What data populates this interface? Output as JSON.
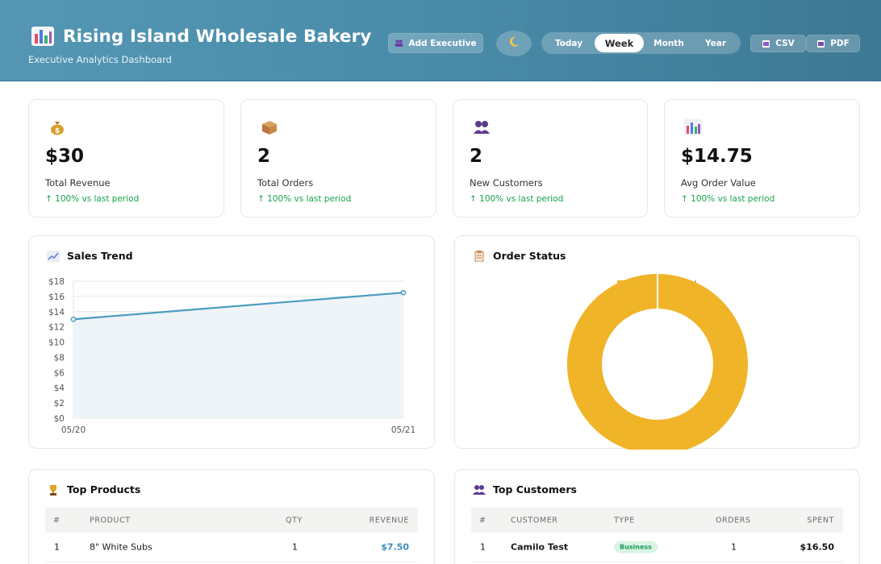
{
  "header": {
    "title": "Rising Island Wholesale Bakery",
    "subtitle": "Executive Analytics Dashboard",
    "add_executive_label": "Add Executive",
    "periods": [
      "Today",
      "Week",
      "Month",
      "Year"
    ],
    "active_period": "Week",
    "csv_label": "CSV",
    "pdf_label": "PDF",
    "theme_icon": "moon-icon",
    "accent": "#4a8dab"
  },
  "stats": [
    {
      "icon": "money-bag-icon",
      "value": "$30",
      "label": "Total Revenue",
      "change": "↑ 100% vs last period"
    },
    {
      "icon": "package-icon",
      "value": "2",
      "label": "Total Orders",
      "change": "↑ 100% vs last period"
    },
    {
      "icon": "users-icon",
      "value": "2",
      "label": "New Customers",
      "change": "↑ 100% vs last period"
    },
    {
      "icon": "bar-chart-icon",
      "value": "$14.75",
      "label": "Avg Order Value",
      "change": "↑ 100% vs last period"
    }
  ],
  "sales_trend": {
    "title": "Sales Trend",
    "chart_data": {
      "type": "area",
      "x": [
        "05/20",
        "05/21"
      ],
      "values": [
        13,
        16.5
      ],
      "y_ticks": [
        "$0",
        "$2",
        "$4",
        "$6",
        "$8",
        "$10",
        "$12",
        "$14",
        "$16",
        "$18"
      ],
      "ylim": [
        0,
        18
      ],
      "line_color": "#4a9bc0",
      "fill_color": "#eef4f8",
      "grid": true
    }
  },
  "order_status": {
    "title": "Order Status",
    "chart_data": {
      "type": "pie",
      "donut": true,
      "labels": [
        "processed"
      ],
      "values": [
        2
      ],
      "colors": [
        "#f0b429"
      ],
      "legend": "top"
    }
  },
  "top_products": {
    "title": "Top Products",
    "columns": [
      "#",
      "PRODUCT",
      "QTY",
      "REVENUE"
    ],
    "rows": [
      {
        "rank": "1",
        "product": "8\" White Subs",
        "qty": "1",
        "revenue": "$7.50"
      }
    ]
  },
  "top_customers": {
    "title": "Top Customers",
    "columns": [
      "#",
      "CUSTOMER",
      "TYPE",
      "ORDERS",
      "SPENT"
    ],
    "rows": [
      {
        "rank": "1",
        "customer": "Camilo Test",
        "type": "Business",
        "orders": "1",
        "spent": "$16.50"
      }
    ]
  }
}
